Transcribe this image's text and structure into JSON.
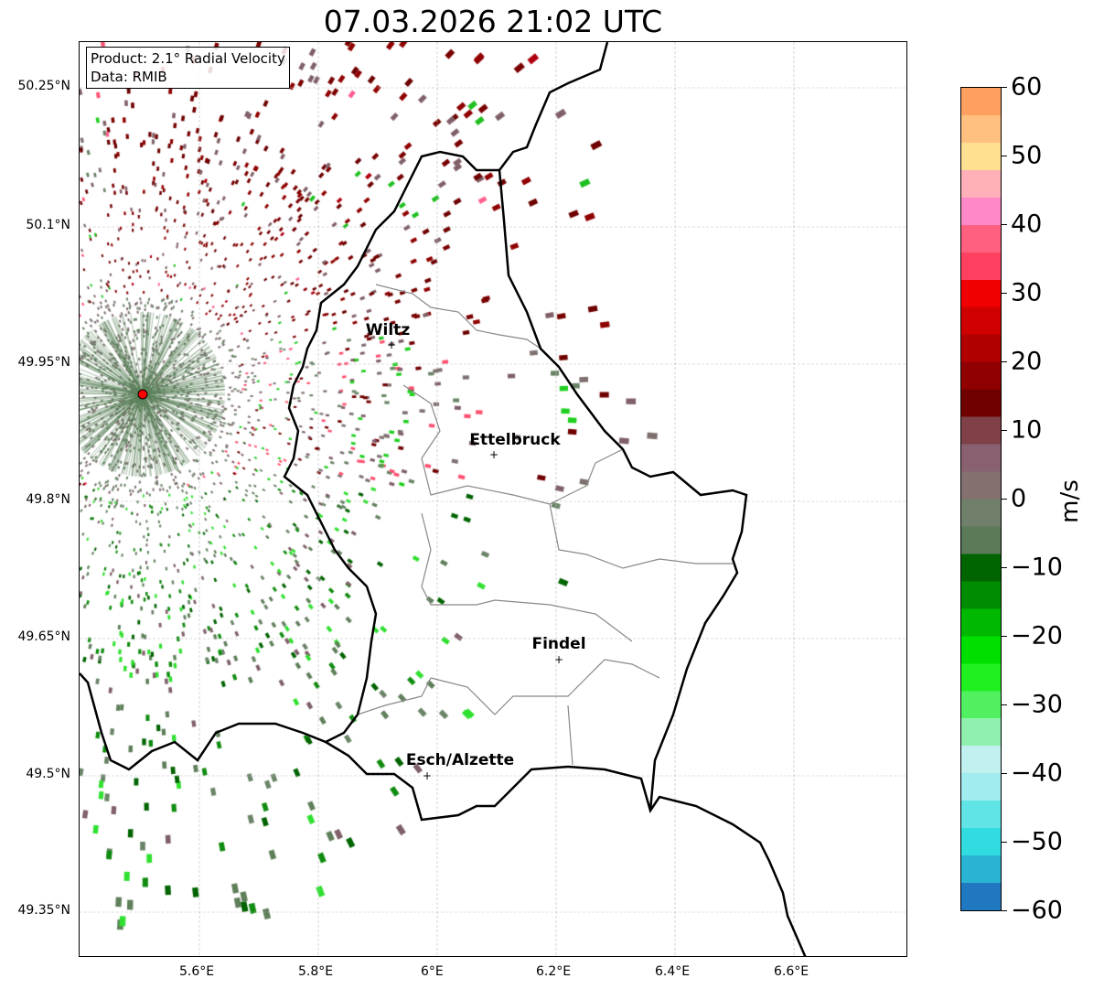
{
  "title": "07.03.2026 21:02 UTC",
  "info": {
    "product": "Product: 2.1° Radial Velocity",
    "data": "Data: RMIB"
  },
  "lon_ticks": [
    "5.6°E",
    "5.8°E",
    "6°E",
    "6.2°E",
    "6.4°E",
    "6.6°E"
  ],
  "lat_ticks": [
    "50.25°N",
    "50.1°N",
    "49.95°N",
    "49.8°N",
    "49.65°N",
    "49.5°N",
    "49.35°N"
  ],
  "cities": [
    {
      "name": "Wiltz"
    },
    {
      "name": "Ettelbruck"
    },
    {
      "name": "Findel"
    },
    {
      "name": "Esch/Alzette"
    }
  ],
  "colorbar": {
    "label": "m/s",
    "ticks": [
      "60",
      "50",
      "40",
      "30",
      "20",
      "10",
      "0",
      "−10",
      "−20",
      "−30",
      "−40",
      "−50",
      "−60"
    ],
    "colors": [
      "#1f78c0",
      "#29b4d4",
      "#30dce0",
      "#60e4e6",
      "#a0ecee",
      "#c0f0f0",
      "#90f0b0",
      "#50f060",
      "#20f020",
      "#00e000",
      "#00b800",
      "#008c00",
      "#006400",
      "#5a7a58",
      "#6f7f6a",
      "#857070",
      "#886070",
      "#804048",
      "#700000",
      "#900000",
      "#b00000",
      "#d00000",
      "#f00000",
      "#ff4060",
      "#ff6080",
      "#ff88c8",
      "#ffb0b8",
      "#ffe090",
      "#ffc080",
      "#ffa060"
    ]
  },
  "radar": {
    "site_lon": 5.505,
    "site_lat": 49.915
  }
}
